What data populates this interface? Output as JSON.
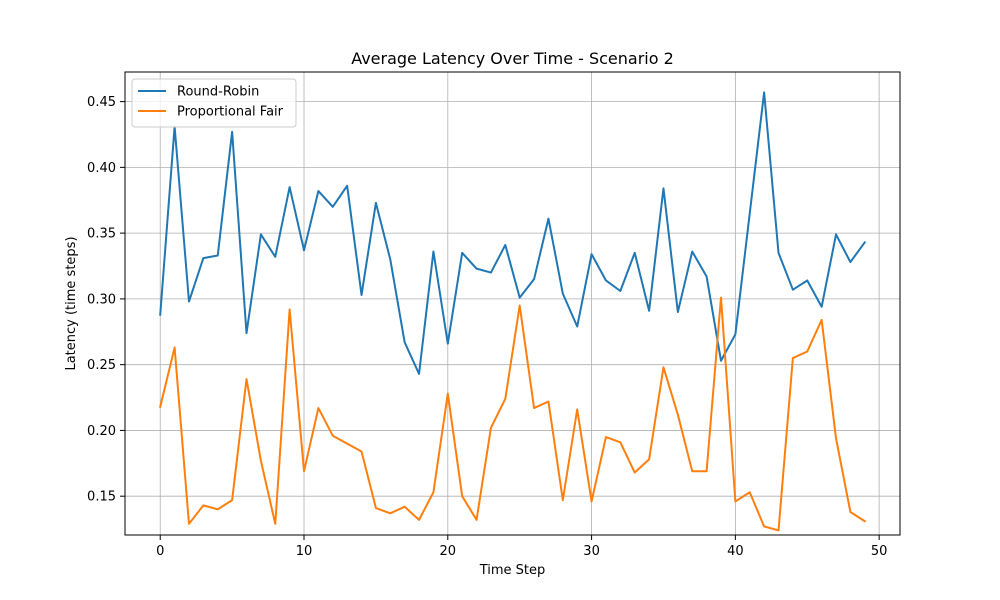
{
  "chart_data": {
    "type": "line",
    "title": "Average Latency Over Time - Scenario 2",
    "xlabel": "Time Step",
    "ylabel": "Latency (time steps)",
    "xlim": [
      -2.45,
      51.45
    ],
    "ylim": [
      0.1205,
      0.4725
    ],
    "xticks": [
      0,
      10,
      20,
      30,
      40,
      50
    ],
    "yticks": [
      0.15,
      0.2,
      0.25,
      0.3,
      0.35,
      0.4,
      0.45
    ],
    "ytick_labels": [
      "0.15",
      "0.20",
      "0.25",
      "0.30",
      "0.35",
      "0.40",
      "0.45"
    ],
    "grid": true,
    "legend_position": "top-left",
    "x": [
      0,
      1,
      2,
      3,
      4,
      5,
      6,
      7,
      8,
      9,
      10,
      11,
      12,
      13,
      14,
      15,
      16,
      17,
      18,
      19,
      20,
      21,
      22,
      23,
      24,
      25,
      26,
      27,
      28,
      29,
      30,
      31,
      32,
      33,
      34,
      35,
      36,
      37,
      38,
      39,
      40,
      41,
      42,
      43,
      44,
      45,
      46,
      47,
      48,
      49
    ],
    "series": [
      {
        "name": "Round-Robin",
        "color": "#1f77b4",
        "values": [
          0.288,
          0.431,
          0.298,
          0.331,
          0.333,
          0.427,
          0.274,
          0.349,
          0.332,
          0.385,
          0.337,
          0.382,
          0.37,
          0.386,
          0.303,
          0.373,
          0.33,
          0.267,
          0.243,
          0.336,
          0.266,
          0.335,
          0.323,
          0.32,
          0.341,
          0.301,
          0.315,
          0.361,
          0.304,
          0.279,
          0.334,
          0.314,
          0.306,
          0.335,
          0.291,
          0.384,
          0.29,
          0.336,
          0.317,
          0.253,
          0.273,
          0.365,
          0.457,
          0.335,
          0.307,
          0.314,
          0.294,
          0.349,
          0.328,
          0.343
        ]
      },
      {
        "name": "Proportional Fair",
        "color": "#ff7f0e",
        "values": [
          0.218,
          0.263,
          0.129,
          0.143,
          0.14,
          0.147,
          0.239,
          0.177,
          0.129,
          0.292,
          0.169,
          0.217,
          0.196,
          0.19,
          0.184,
          0.141,
          0.137,
          0.142,
          0.132,
          0.153,
          0.228,
          0.15,
          0.132,
          0.202,
          0.224,
          0.295,
          0.217,
          0.222,
          0.147,
          0.216,
          0.146,
          0.195,
          0.191,
          0.168,
          0.178,
          0.248,
          0.212,
          0.169,
          0.169,
          0.301,
          0.146,
          0.153,
          0.127,
          0.124,
          0.255,
          0.26,
          0.284,
          0.194,
          0.138,
          0.131
        ]
      }
    ]
  }
}
